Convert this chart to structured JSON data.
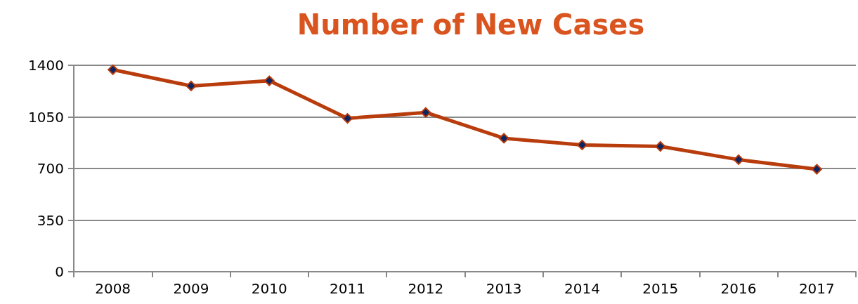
{
  "chart_data": {
    "type": "line",
    "title": "Number of New Cases",
    "categories": [
      "2008",
      "2009",
      "2010",
      "2011",
      "2012",
      "2013",
      "2014",
      "2015",
      "2016",
      "2017"
    ],
    "series": [
      {
        "color": "#b83c0c",
        "values": [
          1370,
          1260,
          1295,
          1040,
          1080,
          905,
          860,
          850,
          760,
          695
        ]
      }
    ],
    "ylim": [
      0,
      1400
    ],
    "yticks": [
      0,
      350,
      700,
      1050,
      1400
    ],
    "grid": "y",
    "marker": "diamond",
    "line_style": "solid"
  }
}
